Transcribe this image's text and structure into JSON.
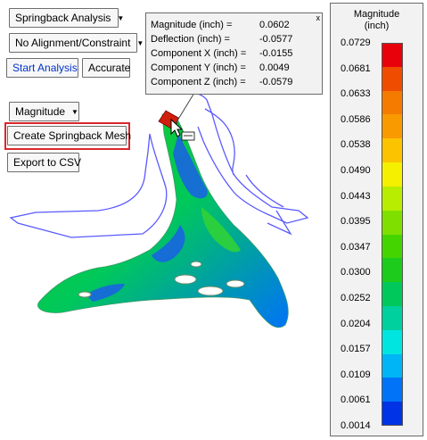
{
  "toolbar": {
    "analysis_dropdown": "Springback Analysis",
    "alignment_dropdown": "No Alignment/Constraint",
    "start_analysis": "Start Analysis",
    "accurate": "Accurate",
    "display_dropdown": "Magnitude",
    "create_mesh": "Create Springback Mesh",
    "export_csv": "Export to CSV"
  },
  "info_panel": {
    "rows": [
      {
        "label": "Magnitude (inch) =",
        "value": "0.0602"
      },
      {
        "label": "Deflection (inch) =",
        "value": "-0.0577"
      },
      {
        "label": "Component X (inch) =",
        "value": "-0.0155"
      },
      {
        "label": "Component Y (inch) =",
        "value": "0.0049"
      },
      {
        "label": "Component Z (inch) =",
        "value": "-0.0579"
      }
    ],
    "close_glyph": "x"
  },
  "legend": {
    "title_line1": "Magnitude",
    "title_line2": "(inch)",
    "ticks": [
      "0.0729",
      "0.0681",
      "0.0633",
      "0.0586",
      "0.0538",
      "0.0490",
      "0.0443",
      "0.0395",
      "0.0347",
      "0.0300",
      "0.0252",
      "0.0204",
      "0.0157",
      "0.0109",
      "0.0061",
      "0.0014"
    ],
    "colors": [
      "#e8000b",
      "#f04c00",
      "#f57a00",
      "#f99a00",
      "#fbc300",
      "#f5f000",
      "#b8ec00",
      "#7fe000",
      "#44d400",
      "#1ccb1c",
      "#00c85a",
      "#00cf9e",
      "#00e5e0",
      "#00b5f5",
      "#0073f7",
      "#0033e6"
    ]
  },
  "model": {
    "outline_color": "#5a5aff",
    "cursor_icon": "pointer-with-measure-icon"
  }
}
